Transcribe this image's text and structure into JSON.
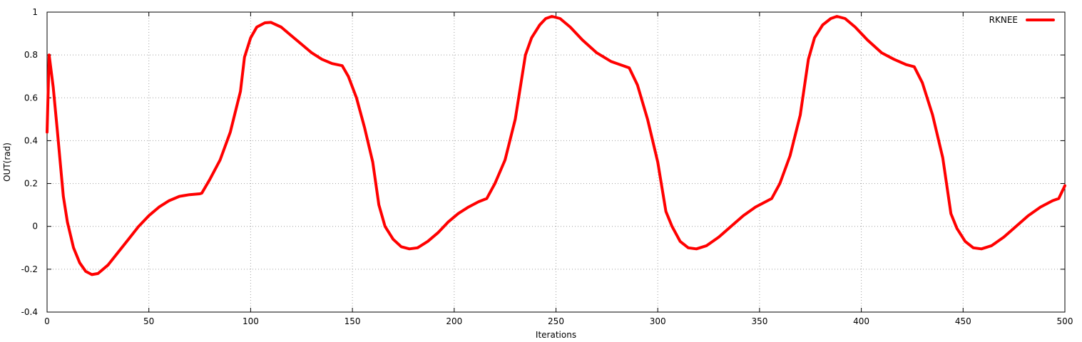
{
  "chart_data": {
    "type": "line",
    "title": "",
    "xlabel": "Iterations",
    "ylabel": "OUT(rad)",
    "xlim": [
      0,
      500
    ],
    "ylim": [
      -0.4,
      1
    ],
    "x_ticks": [
      0,
      50,
      100,
      150,
      200,
      250,
      300,
      350,
      400,
      450,
      500
    ],
    "y_ticks": [
      -0.4,
      -0.2,
      0,
      0.2,
      0.4,
      0.6,
      0.8,
      1
    ],
    "x_tick_labels": [
      "0",
      "50",
      "100",
      "150",
      "200",
      "250",
      "300",
      "350",
      "400",
      "450",
      "500"
    ],
    "y_tick_labels": [
      "-0.4",
      "-0.2",
      "0",
      "0.2",
      "0.4",
      "0.6",
      "0.8",
      "1"
    ],
    "grid": true,
    "legend_position": "top-right",
    "series": [
      {
        "name": "RKNEE",
        "color": "#ff0000",
        "points": [
          [
            0,
            0.44
          ],
          [
            1,
            0.8
          ],
          [
            3,
            0.65
          ],
          [
            5,
            0.45
          ],
          [
            8,
            0.14
          ],
          [
            10,
            0.02
          ],
          [
            13,
            -0.1
          ],
          [
            16,
            -0.17
          ],
          [
            19,
            -0.21
          ],
          [
            22,
            -0.225
          ],
          [
            25,
            -0.22
          ],
          [
            30,
            -0.18
          ],
          [
            35,
            -0.12
          ],
          [
            40,
            -0.06
          ],
          [
            45,
            0.0
          ],
          [
            50,
            0.05
          ],
          [
            55,
            0.09
          ],
          [
            60,
            0.12
          ],
          [
            65,
            0.14
          ],
          [
            70,
            0.148
          ],
          [
            75,
            0.152
          ],
          [
            76,
            0.155
          ],
          [
            80,
            0.22
          ],
          [
            85,
            0.31
          ],
          [
            90,
            0.44
          ],
          [
            95,
            0.63
          ],
          [
            97,
            0.79
          ],
          [
            100,
            0.88
          ],
          [
            103,
            0.93
          ],
          [
            107,
            0.95
          ],
          [
            110,
            0.952
          ],
          [
            115,
            0.93
          ],
          [
            120,
            0.89
          ],
          [
            125,
            0.85
          ],
          [
            130,
            0.81
          ],
          [
            135,
            0.78
          ],
          [
            140,
            0.76
          ],
          [
            145,
            0.75
          ],
          [
            148,
            0.7
          ],
          [
            152,
            0.6
          ],
          [
            156,
            0.46
          ],
          [
            160,
            0.3
          ],
          [
            163,
            0.1
          ],
          [
            166,
            0.0
          ],
          [
            170,
            -0.06
          ],
          [
            174,
            -0.095
          ],
          [
            178,
            -0.105
          ],
          [
            182,
            -0.1
          ],
          [
            187,
            -0.07
          ],
          [
            192,
            -0.03
          ],
          [
            197,
            0.02
          ],
          [
            202,
            0.06
          ],
          [
            207,
            0.09
          ],
          [
            212,
            0.115
          ],
          [
            216,
            0.13
          ],
          [
            220,
            0.2
          ],
          [
            225,
            0.31
          ],
          [
            230,
            0.5
          ],
          [
            235,
            0.8
          ],
          [
            238,
            0.88
          ],
          [
            242,
            0.94
          ],
          [
            245,
            0.97
          ],
          [
            248,
            0.98
          ],
          [
            252,
            0.97
          ],
          [
            257,
            0.93
          ],
          [
            263,
            0.87
          ],
          [
            270,
            0.81
          ],
          [
            277,
            0.77
          ],
          [
            283,
            0.75
          ],
          [
            286,
            0.74
          ],
          [
            290,
            0.66
          ],
          [
            295,
            0.5
          ],
          [
            300,
            0.3
          ],
          [
            304,
            0.07
          ],
          [
            307,
            0.0
          ],
          [
            311,
            -0.07
          ],
          [
            315,
            -0.1
          ],
          [
            319,
            -0.105
          ],
          [
            324,
            -0.09
          ],
          [
            330,
            -0.05
          ],
          [
            336,
            0.0
          ],
          [
            342,
            0.05
          ],
          [
            348,
            0.09
          ],
          [
            352,
            0.11
          ],
          [
            356,
            0.13
          ],
          [
            360,
            0.2
          ],
          [
            365,
            0.33
          ],
          [
            370,
            0.52
          ],
          [
            374,
            0.78
          ],
          [
            377,
            0.88
          ],
          [
            381,
            0.94
          ],
          [
            385,
            0.97
          ],
          [
            388,
            0.98
          ],
          [
            392,
            0.97
          ],
          [
            397,
            0.93
          ],
          [
            403,
            0.87
          ],
          [
            410,
            0.81
          ],
          [
            416,
            0.78
          ],
          [
            422,
            0.755
          ],
          [
            426,
            0.745
          ],
          [
            430,
            0.67
          ],
          [
            435,
            0.52
          ],
          [
            440,
            0.32
          ],
          [
            444,
            0.06
          ],
          [
            447,
            -0.01
          ],
          [
            451,
            -0.07
          ],
          [
            455,
            -0.1
          ],
          [
            459,
            -0.105
          ],
          [
            464,
            -0.09
          ],
          [
            470,
            -0.05
          ],
          [
            476,
            0.0
          ],
          [
            482,
            0.05
          ],
          [
            488,
            0.09
          ],
          [
            494,
            0.12
          ],
          [
            497,
            0.13
          ],
          [
            500,
            0.19
          ]
        ]
      }
    ]
  }
}
